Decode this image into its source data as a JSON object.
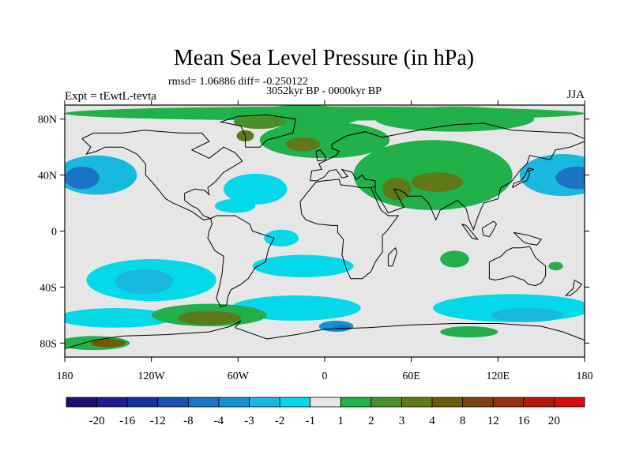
{
  "chart_data": {
    "type": "heatmap",
    "title": "Mean Sea Level Pressure (in hPa)",
    "stats_text": "rmsd= 1.06886 diff= -0.250122",
    "period_text": "3052kyr BP - 0000kyr BP",
    "experiment_text": "Expt = tEwtL-tevta",
    "season_text": "JJA",
    "xlim": [
      -180,
      180
    ],
    "ylim": [
      -90,
      90
    ],
    "x_ticks": [
      {
        "value": -180,
        "label": "180"
      },
      {
        "value": -120,
        "label": "120W"
      },
      {
        "value": -60,
        "label": "60W"
      },
      {
        "value": 0,
        "label": "0"
      },
      {
        "value": 60,
        "label": "60E"
      },
      {
        "value": 120,
        "label": "120E"
      },
      {
        "value": 180,
        "label": "180"
      }
    ],
    "y_ticks": [
      {
        "value": 80,
        "label": "80N"
      },
      {
        "value": 40,
        "label": "40N"
      },
      {
        "value": 0,
        "label": "0"
      },
      {
        "value": -40,
        "label": "40S"
      },
      {
        "value": -80,
        "label": "80S"
      }
    ],
    "colorbar": {
      "colors": [
        "#1b0f6e",
        "#1a1c8f",
        "#17319e",
        "#1a51b4",
        "#1a73c4",
        "#1592d2",
        "#19b8de",
        "#05d9e9",
        "#e6e6e6",
        "#21b04a",
        "#4a8f2c",
        "#5e7a18",
        "#6e5a0c",
        "#7a4410",
        "#95300c",
        "#b4190a",
        "#d20d0d"
      ],
      "labels": [
        "-20",
        "-16",
        "-12",
        "-8",
        "-4",
        "-3",
        "-2",
        "-1",
        "1",
        "2",
        "3",
        "4",
        "8",
        "12",
        "16",
        "20"
      ]
    },
    "anomaly_regions": [
      {
        "name": "arctic-band",
        "cls": 1,
        "lon": 0,
        "lat": 84,
        "rlon": 180,
        "rlat": 5
      },
      {
        "name": "arctic-europe",
        "cls": 1,
        "lon": -15,
        "lat": 82,
        "rlon": 40,
        "rlat": 8
      },
      {
        "name": "arctic-siberia",
        "cls": 1,
        "lon": 90,
        "lat": 80,
        "rlon": 55,
        "rlat": 9
      },
      {
        "name": "arctic-greenland",
        "cls": 2,
        "lon": -45,
        "lat": 78,
        "rlon": 18,
        "rlat": 5
      },
      {
        "name": "europe-russia",
        "cls": 1,
        "lon": 0,
        "lat": 65,
        "rlon": 45,
        "rlat": 13
      },
      {
        "name": "europe-core",
        "cls": 3,
        "lon": -15,
        "lat": 62,
        "rlon": 12,
        "rlat": 5
      },
      {
        "name": "europe-core-2",
        "cls": 3,
        "lon": -55,
        "lat": 68,
        "rlon": 6,
        "rlat": 4
      },
      {
        "name": "asia-high",
        "cls": 1,
        "lon": 75,
        "lat": 40,
        "rlon": 55,
        "rlat": 25
      },
      {
        "name": "asia-core-1",
        "cls": 3,
        "lon": 78,
        "lat": 35,
        "rlon": 18,
        "rlat": 7
      },
      {
        "name": "asia-core-2",
        "cls": 3,
        "lon": 50,
        "lat": 30,
        "rlon": 10,
        "rlat": 8
      },
      {
        "name": "pacific-ne",
        "cls": -2,
        "lon": -158,
        "lat": 40,
        "rlon": 28,
        "rlat": 14
      },
      {
        "name": "pacific-ne-core",
        "cls": -4,
        "lon": -168,
        "lat": 38,
        "rlon": 12,
        "rlat": 8
      },
      {
        "name": "pacific-nw",
        "cls": -2,
        "lon": 165,
        "lat": 40,
        "rlon": 30,
        "rlat": 15
      },
      {
        "name": "pacific-nw-core",
        "cls": -4,
        "lon": 175,
        "lat": 38,
        "rlon": 15,
        "rlat": 8
      },
      {
        "name": "atlantic-n",
        "cls": -1,
        "lon": -48,
        "lat": 30,
        "rlon": 22,
        "rlat": 11
      },
      {
        "name": "atlantic-n-2",
        "cls": -1,
        "lon": -62,
        "lat": 18,
        "rlon": 14,
        "rlat": 5
      },
      {
        "name": "atlantic-eq",
        "cls": -1,
        "lon": -30,
        "lat": -5,
        "rlon": 12,
        "rlat": 6
      },
      {
        "name": "atlantic-s-band",
        "cls": -1,
        "lon": -15,
        "lat": -25,
        "rlon": 35,
        "rlat": 8
      },
      {
        "name": "pacific-s",
        "cls": -1,
        "lon": -120,
        "lat": -35,
        "rlon": 45,
        "rlat": 15
      },
      {
        "name": "pacific-s-core",
        "cls": -2,
        "lon": -125,
        "lat": -36,
        "rlon": 20,
        "rlat": 9
      },
      {
        "name": "southern-ocean-pac",
        "cls": -1,
        "lon": -145,
        "lat": -62,
        "rlon": 40,
        "rlat": 7
      },
      {
        "name": "southern-ocean-atl",
        "cls": -1,
        "lon": -20,
        "lat": -55,
        "rlon": 45,
        "rlat": 9
      },
      {
        "name": "southern-ocean-ind",
        "cls": -1,
        "lon": 130,
        "lat": -55,
        "rlon": 55,
        "rlat": 10
      },
      {
        "name": "southern-ocean-ind-core",
        "cls": -2,
        "lon": 140,
        "lat": -60,
        "rlon": 25,
        "rlat": 5
      },
      {
        "name": "so-atl-core",
        "cls": -3,
        "lon": 8,
        "lat": -68,
        "rlon": 12,
        "rlat": 4
      },
      {
        "name": "so-atl-core-2",
        "cls": -4,
        "lon": 12,
        "lat": -69,
        "rlon": 6,
        "rlat": 2
      },
      {
        "name": "drake-passage",
        "cls": 1,
        "lon": -80,
        "lat": -60,
        "rlon": 40,
        "rlat": 8
      },
      {
        "name": "drake-core",
        "cls": 3,
        "lon": -80,
        "lat": -62,
        "rlon": 22,
        "rlat": 5
      },
      {
        "name": "antarctic-pac",
        "cls": 1,
        "lon": -160,
        "lat": -80,
        "rlon": 25,
        "rlat": 5
      },
      {
        "name": "antarctic-pac-core",
        "cls": 4,
        "lon": -150,
        "lat": -80,
        "rlon": 12,
        "rlat": 3
      },
      {
        "name": "antarctic-ind",
        "cls": 1,
        "lon": 100,
        "lat": -72,
        "rlon": 20,
        "rlat": 4
      },
      {
        "name": "australia-w",
        "cls": 1,
        "lon": 90,
        "lat": -20,
        "rlon": 10,
        "rlat": 6
      },
      {
        "name": "australia-e",
        "cls": 1,
        "lon": 160,
        "lat": -25,
        "rlon": 5,
        "rlat": 3
      }
    ]
  }
}
